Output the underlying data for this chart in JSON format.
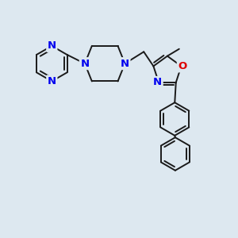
{
  "bg_color": "#dde8f0",
  "bond_color": "#1a1a1a",
  "n_color": "#0000ee",
  "o_color": "#dd0000",
  "line_width": 1.4,
  "font_size": 8.5,
  "fig_size": [
    3.0,
    3.0
  ],
  "dpi": 100,
  "xlim": [
    0,
    10
  ],
  "ylim": [
    0,
    10
  ]
}
